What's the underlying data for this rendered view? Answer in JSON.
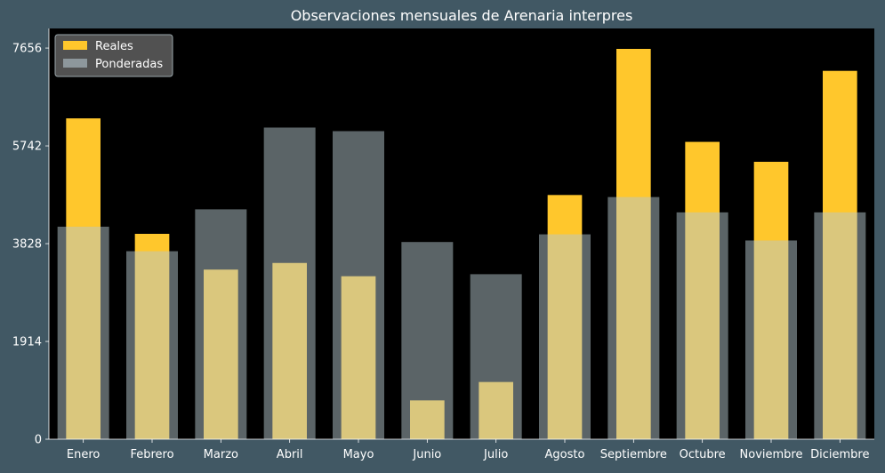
{
  "chart_data": {
    "type": "bar",
    "title": "Observaciones mensuales de Arenaria interpres",
    "xlabel": "",
    "ylabel": "",
    "categories": [
      "Enero",
      "Febrero",
      "Marzo",
      "Abril",
      "Mayo",
      "Junio",
      "Julio",
      "Agosto",
      "Septiembre",
      "Octubre",
      "Noviembre",
      "Diciembre"
    ],
    "series": [
      {
        "name": "Reales",
        "color": "#ffc72c",
        "values": [
          6280,
          4020,
          3320,
          3450,
          3190,
          760,
          1120,
          4780,
          7640,
          5820,
          5430,
          7210
        ]
      },
      {
        "name": "Ponderadas",
        "color": "#b6c7ce",
        "opacity": 0.5,
        "values": [
          4160,
          3680,
          4500,
          6100,
          6030,
          3860,
          3230,
          4010,
          4740,
          4440,
          3890,
          4440
        ]
      }
    ],
    "ylim": [
      0,
      8040
    ],
    "yticks": [
      0,
      1914,
      3828,
      5742,
      7656
    ],
    "grid": false,
    "legend": "top-left",
    "colors": {
      "background": "#415864",
      "plot_background": "#000000",
      "text": "#ffffff",
      "legend_background": "#5a5a5a"
    }
  }
}
